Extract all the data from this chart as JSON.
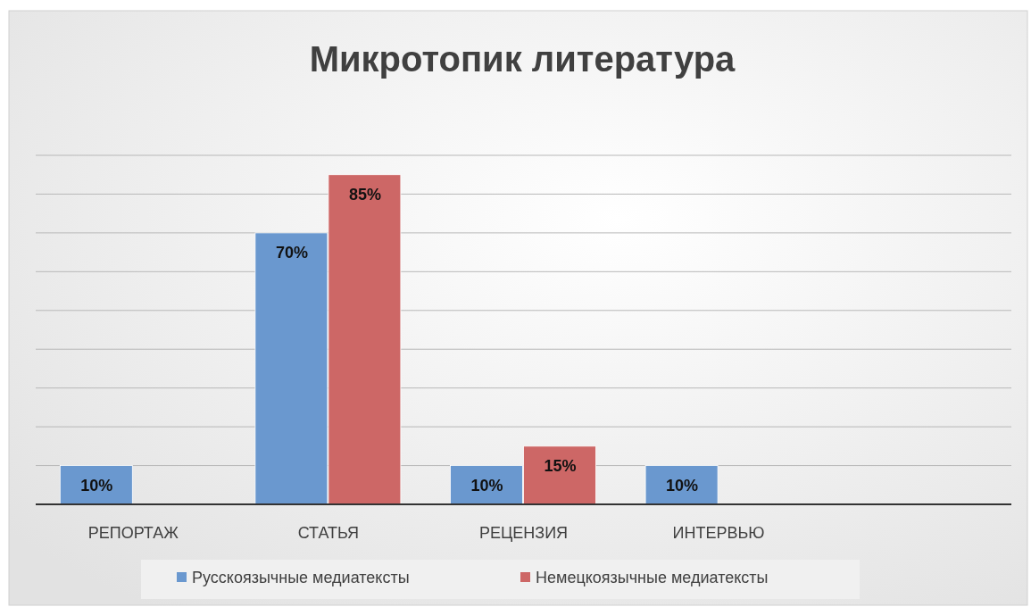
{
  "chart_data": {
    "type": "bar",
    "title": "Микротопик литература",
    "categories": [
      "РЕПОРТАЖ",
      "СТАТЬЯ",
      "РЕЦЕНЗИЯ",
      "ИНТЕРВЬЮ",
      null
    ],
    "series": [
      {
        "name": "Русскоязычные медиатексты",
        "color": "#6a98cf",
        "values": [
          10,
          70,
          10,
          10,
          null
        ],
        "value_labels": [
          "10%",
          "70%",
          "10%",
          "10%",
          null
        ]
      },
      {
        "name": "Немецкоязычные медиатексты",
        "color": "#cd6766",
        "values": [
          null,
          85,
          15,
          null,
          null
        ],
        "value_labels": [
          null,
          "85%",
          "15%",
          null,
          null
        ]
      }
    ],
    "ylim": [
      0,
      90
    ],
    "yticks": [
      {
        "value": 0,
        "label": null
      },
      {
        "value": 10,
        "label": null
      },
      {
        "value": 20,
        "label": null
      },
      {
        "value": 30,
        "label": null
      },
      {
        "value": 40,
        "label": null
      },
      {
        "value": 50,
        "label": null
      },
      {
        "value": 60,
        "label": null
      },
      {
        "value": 70,
        "label": null
      },
      {
        "value": 80,
        "label": null
      },
      {
        "value": 90,
        "label": null
      }
    ],
    "grid": "y",
    "legend": "bottom",
    "tick_labels": "x"
  }
}
